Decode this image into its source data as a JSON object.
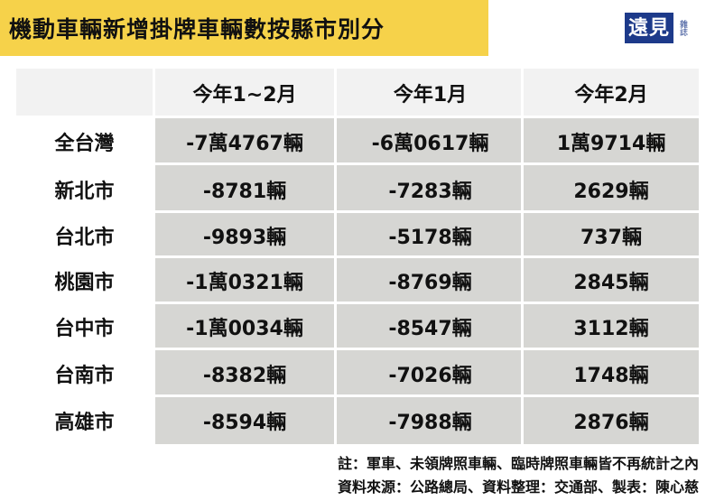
{
  "title": "機動車輛新增掛牌車輛數按縣市別分",
  "logo": {
    "main": "遠見",
    "sub": "雜誌"
  },
  "chart_data": {
    "type": "table",
    "columns": [
      "今年1~2月",
      "今年1月",
      "今年2月"
    ],
    "rows": [
      {
        "label": "全台灣",
        "values": [
          "-7萬4767輛",
          "-6萬0617輛",
          "1萬9714輛"
        ]
      },
      {
        "label": "新北市",
        "values": [
          "-8781輛",
          "-7283輛",
          "2629輛"
        ]
      },
      {
        "label": "台北市",
        "values": [
          "-9893輛",
          "-5178輛",
          "737輛"
        ]
      },
      {
        "label": "桃園市",
        "values": [
          "-1萬0321輛",
          "-8769輛",
          "2845輛"
        ]
      },
      {
        "label": "台中市",
        "values": [
          "-1萬0034輛",
          "-8547輛",
          "3112輛"
        ]
      },
      {
        "label": "台南市",
        "values": [
          "-8382輛",
          "-7026輛",
          "1748輛"
        ]
      },
      {
        "label": "高雄市",
        "values": [
          "-8594輛",
          "-7988輛",
          "2876輛"
        ]
      }
    ]
  },
  "notes": {
    "line1": "註：軍車、未領牌照車輛、臨時牌照車輛皆不再統計之內",
    "line2": "資料來源：公路總局、資料整理：交通部、製表：陳心慈"
  }
}
